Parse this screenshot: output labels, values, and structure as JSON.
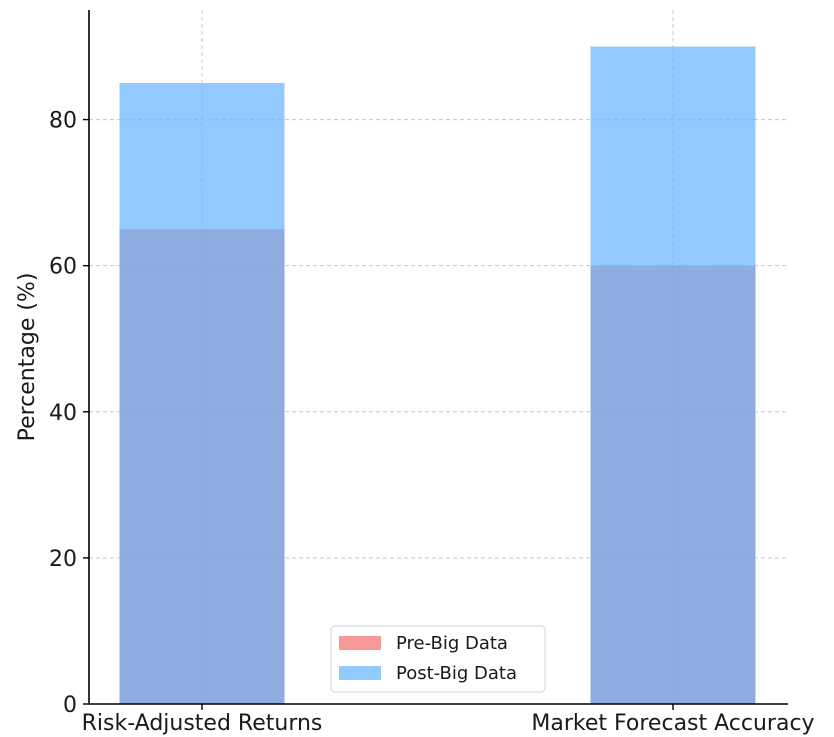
{
  "chart_data": {
    "type": "bar",
    "title": "",
    "xlabel": "",
    "ylabel": "Percentage (%)",
    "categories": [
      "Risk-Adjusted Returns",
      "Market Forecast Accuracy"
    ],
    "series": [
      {
        "name": "Pre-Big Data",
        "values": [
          65,
          60
        ],
        "color": "#f28080",
        "opacity": 0.8
      },
      {
        "name": "Post-Big Data",
        "values": [
          85,
          90
        ],
        "color": "#64b4ff",
        "opacity": 0.7
      }
    ],
    "overlaid": true,
    "ylim": [
      0,
      95
    ],
    "yticks": [
      0,
      20,
      40,
      60,
      80
    ],
    "grid": true,
    "legend_position": "bottom-center"
  }
}
